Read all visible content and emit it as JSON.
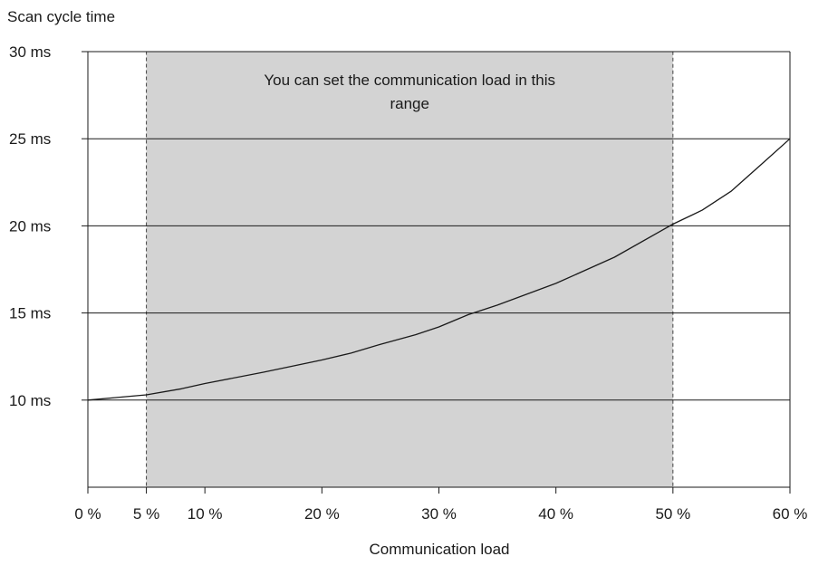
{
  "chart_data": {
    "type": "line",
    "title": "",
    "xlabel": "Communication load",
    "ylabel": "Scan cycle time",
    "xlim": [
      0,
      60
    ],
    "ylim": [
      5,
      30
    ],
    "x_ticks": [
      {
        "value": 0,
        "label": "0 %"
      },
      {
        "value": 5,
        "label": "5 %"
      },
      {
        "value": 10,
        "label": "10 %"
      },
      {
        "value": 20,
        "label": "20 %"
      },
      {
        "value": 30,
        "label": "30 %"
      },
      {
        "value": 40,
        "label": "40 %"
      },
      {
        "value": 50,
        "label": "50 %"
      },
      {
        "value": 60,
        "label": "60 %"
      }
    ],
    "y_ticks": [
      {
        "value": 10,
        "label": "10 ms"
      },
      {
        "value": 15,
        "label": "15 ms"
      },
      {
        "value": 20,
        "label": "20 ms"
      },
      {
        "value": 25,
        "label": "25 ms"
      },
      {
        "value": 30,
        "label": "30 ms"
      }
    ],
    "grid": "horizontal",
    "series": [
      {
        "x": [
          0,
          2.5,
          5,
          8,
          10,
          15,
          20,
          22.5,
          25,
          28,
          30,
          32.5,
          35,
          40,
          45,
          50,
          52.5,
          55,
          57.5,
          60
        ],
        "values": [
          10.0,
          10.15,
          10.3,
          10.65,
          10.95,
          11.6,
          12.3,
          12.7,
          13.2,
          13.75,
          14.2,
          14.9,
          15.45,
          16.7,
          18.2,
          20.1,
          20.9,
          22.0,
          23.5,
          25.0
        ]
      }
    ],
    "shaded_range": {
      "x_start": 5,
      "x_end": 50,
      "y_start": 5,
      "y_end": 30,
      "label": "You can set the communication load in this range"
    },
    "colors": {
      "line": "#1a1a1a",
      "grid": "#1a1a1a",
      "shade": "#d3d3d3",
      "shade_border": "#444444"
    }
  }
}
